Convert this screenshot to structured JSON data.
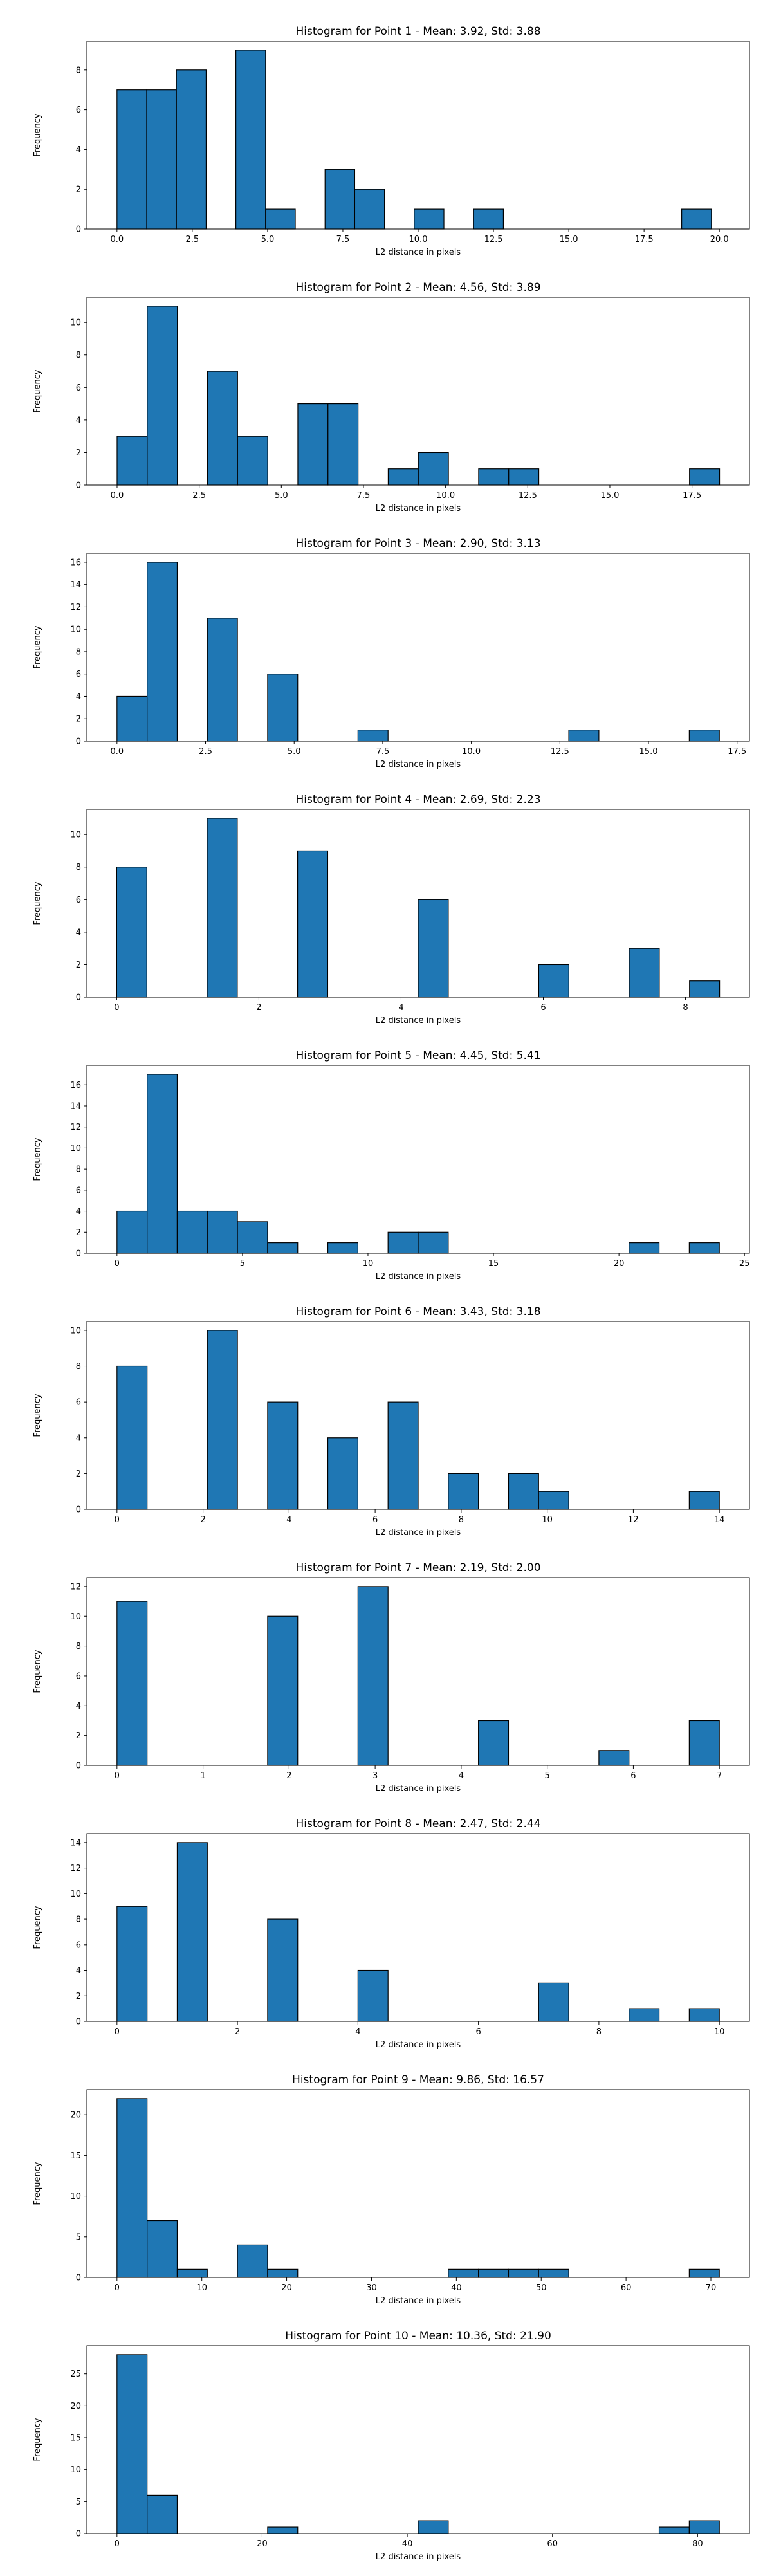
{
  "chart_data": [
    {
      "type": "bar",
      "title": "Histogram for Point 1 - Mean: 3.92, Std: 3.88",
      "xlabel": "L2 distance in pixels",
      "ylabel": "Frequency",
      "xlim": [
        -1,
        21
      ],
      "ylim": [
        0,
        9.45
      ],
      "xticks": [
        0.0,
        2.5,
        5.0,
        7.5,
        10.0,
        12.5,
        15.0,
        17.5,
        20.0
      ],
      "xtick_labels": [
        "0.0",
        "2.5",
        "5.0",
        "7.5",
        "10.0",
        "12.5",
        "15.0",
        "17.5",
        "20.0"
      ],
      "yticks": [
        0,
        2,
        4,
        6,
        8
      ],
      "ytick_labels": [
        "0",
        "2",
        "4",
        "6",
        "8"
      ],
      "bin_start": 0.0,
      "bin_width": 0.9868,
      "counts": [
        7,
        7,
        8,
        0,
        9,
        1,
        0,
        3,
        2,
        0,
        1,
        0,
        1,
        0,
        0,
        0,
        0,
        0,
        0,
        1
      ]
    },
    {
      "type": "bar",
      "title": "Histogram for Point 2 - Mean: 4.56, Std: 3.89",
      "xlabel": "L2 distance in pixels",
      "ylabel": "Frequency",
      "xlim": [
        -0.92,
        19.25
      ],
      "ylim": [
        0,
        11.55
      ],
      "xticks": [
        0.0,
        2.5,
        5.0,
        7.5,
        10.0,
        12.5,
        15.0,
        17.5
      ],
      "xtick_labels": [
        "0.0",
        "2.5",
        "5.0",
        "7.5",
        "10.0",
        "12.5",
        "15.0",
        "17.5"
      ],
      "yticks": [
        0,
        2,
        4,
        6,
        8,
        10
      ],
      "ytick_labels": [
        "0",
        "2",
        "4",
        "6",
        "8",
        "10"
      ],
      "bin_start": 0.0,
      "bin_width": 0.917,
      "counts": [
        3,
        11,
        0,
        7,
        3,
        0,
        5,
        5,
        0,
        1,
        2,
        0,
        1,
        1,
        0,
        0,
        0,
        0,
        0,
        1
      ]
    },
    {
      "type": "bar",
      "title": "Histogram for Point 3 - Mean: 2.90, Std: 3.13",
      "xlabel": "L2 distance in pixels",
      "ylabel": "Frequency",
      "xlim": [
        -0.85,
        17.85
      ],
      "ylim": [
        0,
        16.8
      ],
      "xticks": [
        0.0,
        2.5,
        5.0,
        7.5,
        10.0,
        12.5,
        15.0,
        17.5
      ],
      "xtick_labels": [
        "0.0",
        "2.5",
        "5.0",
        "7.5",
        "10.0",
        "12.5",
        "15.0",
        "17.5"
      ],
      "yticks": [
        0,
        2,
        4,
        6,
        8,
        10,
        12,
        14,
        16
      ],
      "ytick_labels": [
        "0",
        "2",
        "4",
        "6",
        "8",
        "10",
        "12",
        "14",
        "16"
      ],
      "bin_start": 0.0,
      "bin_width": 0.85,
      "counts": [
        4,
        16,
        0,
        11,
        0,
        6,
        0,
        0,
        1,
        0,
        0,
        0,
        0,
        0,
        0,
        1,
        0,
        0,
        0,
        1
      ]
    },
    {
      "type": "bar",
      "title": "Histogram for Point 4 - Mean: 2.69, Std: 2.23",
      "xlabel": "L2 distance in pixels",
      "ylabel": "Frequency",
      "xlim": [
        -0.42,
        8.9
      ],
      "ylim": [
        0,
        11.55
      ],
      "xticks": [
        0,
        2,
        4,
        6,
        8
      ],
      "xtick_labels": [
        "0",
        "2",
        "4",
        "6",
        "8"
      ],
      "yticks": [
        0,
        2,
        4,
        6,
        8,
        10
      ],
      "ytick_labels": [
        "0",
        "2",
        "4",
        "6",
        "8",
        "10"
      ],
      "bin_start": 0.0,
      "bin_width": 0.424,
      "counts": [
        8,
        0,
        0,
        11,
        0,
        0,
        9,
        0,
        0,
        0,
        6,
        0,
        0,
        0,
        2,
        0,
        0,
        3,
        0,
        1
      ]
    },
    {
      "type": "bar",
      "title": "Histogram for Point 5 - Mean: 4.45, Std: 5.41",
      "xlabel": "L2 distance in pixels",
      "ylabel": "Frequency",
      "xlim": [
        -1.2,
        25.2
      ],
      "ylim": [
        0,
        17.85
      ],
      "xticks": [
        0,
        5,
        10,
        15,
        20,
        25
      ],
      "xtick_labels": [
        "0",
        "5",
        "10",
        "15",
        "20",
        "25"
      ],
      "yticks": [
        0,
        2,
        4,
        6,
        8,
        10,
        12,
        14,
        16
      ],
      "ytick_labels": [
        "0",
        "2",
        "4",
        "6",
        "8",
        "10",
        "12",
        "14",
        "16"
      ],
      "bin_start": 0.0,
      "bin_width": 1.2,
      "counts": [
        4,
        17,
        4,
        4,
        3,
        1,
        0,
        1,
        0,
        2,
        2,
        0,
        0,
        0,
        0,
        0,
        0,
        1,
        0,
        1
      ]
    },
    {
      "type": "bar",
      "title": "Histogram for Point 6 - Mean: 3.43, Std: 3.18",
      "xlabel": "L2 distance in pixels",
      "ylabel": "Frequency",
      "xlim": [
        -0.7,
        14.7
      ],
      "ylim": [
        0,
        10.5
      ],
      "xticks": [
        0,
        2,
        4,
        6,
        8,
        10,
        12,
        14
      ],
      "xtick_labels": [
        "0",
        "2",
        "4",
        "6",
        "8",
        "10",
        "12",
        "14"
      ],
      "yticks": [
        0,
        2,
        4,
        6,
        8,
        10
      ],
      "ytick_labels": [
        "0",
        "2",
        "4",
        "6",
        "8",
        "10"
      ],
      "bin_start": 0.0,
      "bin_width": 0.7,
      "counts": [
        8,
        0,
        0,
        10,
        0,
        6,
        0,
        4,
        0,
        6,
        0,
        2,
        0,
        2,
        1,
        0,
        0,
        0,
        0,
        1
      ]
    },
    {
      "type": "bar",
      "title": "Histogram for Point 7 - Mean: 2.19, Std: 2.00",
      "xlabel": "L2 distance in pixels",
      "ylabel": "Frequency",
      "xlim": [
        -0.35,
        7.35
      ],
      "ylim": [
        0,
        12.6
      ],
      "xticks": [
        0,
        1,
        2,
        3,
        4,
        5,
        6,
        7
      ],
      "xtick_labels": [
        "0",
        "1",
        "2",
        "3",
        "4",
        "5",
        "6",
        "7"
      ],
      "yticks": [
        0,
        2,
        4,
        6,
        8,
        10,
        12
      ],
      "ytick_labels": [
        "0",
        "2",
        "4",
        "6",
        "8",
        "10",
        "12"
      ],
      "bin_start": 0.0,
      "bin_width": 0.35,
      "counts": [
        11,
        0,
        0,
        0,
        0,
        10,
        0,
        0,
        12,
        0,
        0,
        0,
        3,
        0,
        0,
        0,
        1,
        0,
        0,
        3
      ]
    },
    {
      "type": "bar",
      "title": "Histogram for Point 8 - Mean: 2.47, Std: 2.44",
      "xlabel": "L2 distance in pixels",
      "ylabel": "Frequency",
      "xlim": [
        -0.5,
        10.5
      ],
      "ylim": [
        0,
        14.7
      ],
      "xticks": [
        0,
        2,
        4,
        6,
        8,
        10
      ],
      "xtick_labels": [
        "0",
        "2",
        "4",
        "6",
        "8",
        "10"
      ],
      "yticks": [
        0,
        2,
        4,
        6,
        8,
        10,
        12,
        14
      ],
      "ytick_labels": [
        "0",
        "2",
        "4",
        "6",
        "8",
        "10",
        "12",
        "14"
      ],
      "bin_start": 0.0,
      "bin_width": 0.5,
      "counts": [
        9,
        0,
        14,
        0,
        0,
        8,
        0,
        0,
        4,
        0,
        0,
        0,
        0,
        0,
        3,
        0,
        0,
        1,
        0,
        1
      ]
    },
    {
      "type": "bar",
      "title": "Histogram for Point 9 - Mean: 9.86, Std: 16.57",
      "xlabel": "L2 distance in pixels",
      "ylabel": "Frequency",
      "xlim": [
        -3.55,
        74.55
      ],
      "ylim": [
        0,
        23.1
      ],
      "xticks": [
        0,
        10,
        20,
        30,
        40,
        50,
        60,
        70
      ],
      "xtick_labels": [
        "0",
        "10",
        "20",
        "30",
        "40",
        "50",
        "60",
        "70"
      ],
      "yticks": [
        0,
        5,
        10,
        15,
        20
      ],
      "ytick_labels": [
        "0",
        "5",
        "10",
        "15",
        "20"
      ],
      "bin_start": 0.0,
      "bin_width": 3.55,
      "counts": [
        22,
        7,
        1,
        0,
        4,
        1,
        0,
        0,
        0,
        0,
        0,
        1,
        1,
        1,
        1,
        0,
        0,
        0,
        0,
        1
      ]
    },
    {
      "type": "bar",
      "title": "Histogram for Point 10 - Mean: 10.36, Std: 21.90",
      "xlabel": "L2 distance in pixels",
      "ylabel": "Frequency",
      "xlim": [
        -4.15,
        87.15
      ],
      "ylim": [
        0,
        29.4
      ],
      "xticks": [
        0,
        20,
        40,
        60,
        80
      ],
      "xtick_labels": [
        "0",
        "20",
        "40",
        "60",
        "80"
      ],
      "yticks": [
        0,
        5,
        10,
        15,
        20,
        25
      ],
      "ytick_labels": [
        "0",
        "5",
        "10",
        "15",
        "20",
        "25"
      ],
      "bin_start": 0.0,
      "bin_width": 4.15,
      "counts": [
        28,
        6,
        0,
        0,
        0,
        1,
        0,
        0,
        0,
        0,
        2,
        0,
        0,
        0,
        0,
        0,
        0,
        0,
        1,
        2
      ]
    }
  ],
  "colors": {
    "bar_fill": "#1f77b4",
    "bar_edge": "#000000",
    "axis": "#000000"
  }
}
